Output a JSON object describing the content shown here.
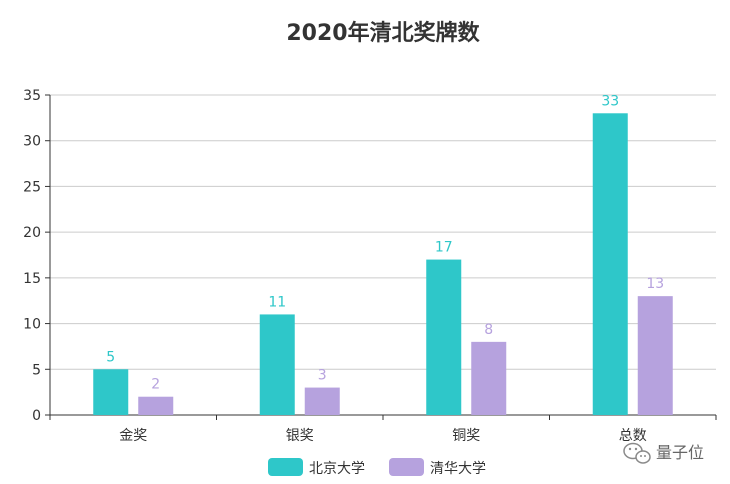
{
  "chart_data": {
    "type": "bar",
    "title": "2020年清北奖牌数",
    "categories": [
      "金奖",
      "银奖",
      "铜奖",
      "总数"
    ],
    "series": [
      {
        "name": "北京大学",
        "values": [
          5,
          11,
          17,
          33
        ],
        "color": "#2ec7c9"
      },
      {
        "name": "清华大学",
        "values": [
          2,
          3,
          8,
          13
        ],
        "color": "#b6a2de"
      }
    ],
    "ylim": [
      0,
      35
    ],
    "yticks": [
      0,
      5,
      10,
      15,
      20,
      25,
      30,
      35
    ],
    "grid": true,
    "legend": "bottom-center",
    "xlabel": "",
    "ylabel": ""
  },
  "watermark": {
    "text": "量子位",
    "icon": "wechat-icon"
  },
  "colors": {
    "axis": "#333333",
    "grid": "#cccccc",
    "text": "#333333"
  }
}
